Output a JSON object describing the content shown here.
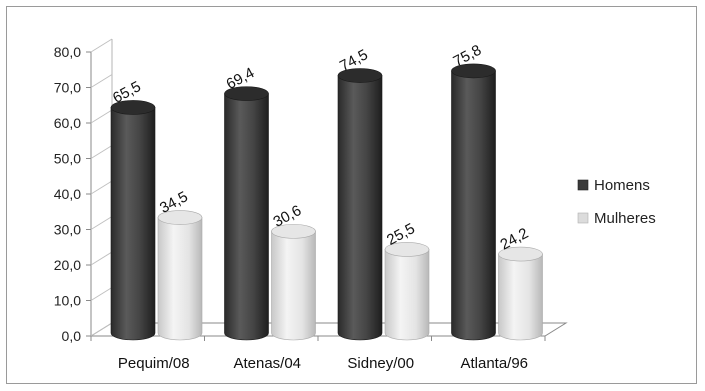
{
  "chart_data": {
    "type": "bar",
    "categories": [
      "Pequim/08",
      "Atenas/04",
      "Sidney/00",
      "Atlanta/96"
    ],
    "series": [
      {
        "name": "Homens",
        "values": [
          65.5,
          69.4,
          74.5,
          75.8
        ]
      },
      {
        "name": "Mulheres",
        "values": [
          34.5,
          30.6,
          25.5,
          24.2
        ]
      }
    ],
    "data_labels": [
      [
        "65,5",
        "69,4",
        "74,5",
        "75,8"
      ],
      [
        "34,5",
        "30,6",
        "25,5",
        "24,2"
      ]
    ],
    "y_ticks": [
      "0,0",
      "10,0",
      "20,0",
      "30,0",
      "40,0",
      "50,0",
      "60,0",
      "70,0",
      "80,0"
    ],
    "ylim": [
      0,
      80
    ],
    "grid": false,
    "legend_position": "right",
    "colors": {
      "Homens": "#3a3a3a",
      "Mulheres": "#dcdcdc"
    },
    "style": "3d-cylinder"
  }
}
